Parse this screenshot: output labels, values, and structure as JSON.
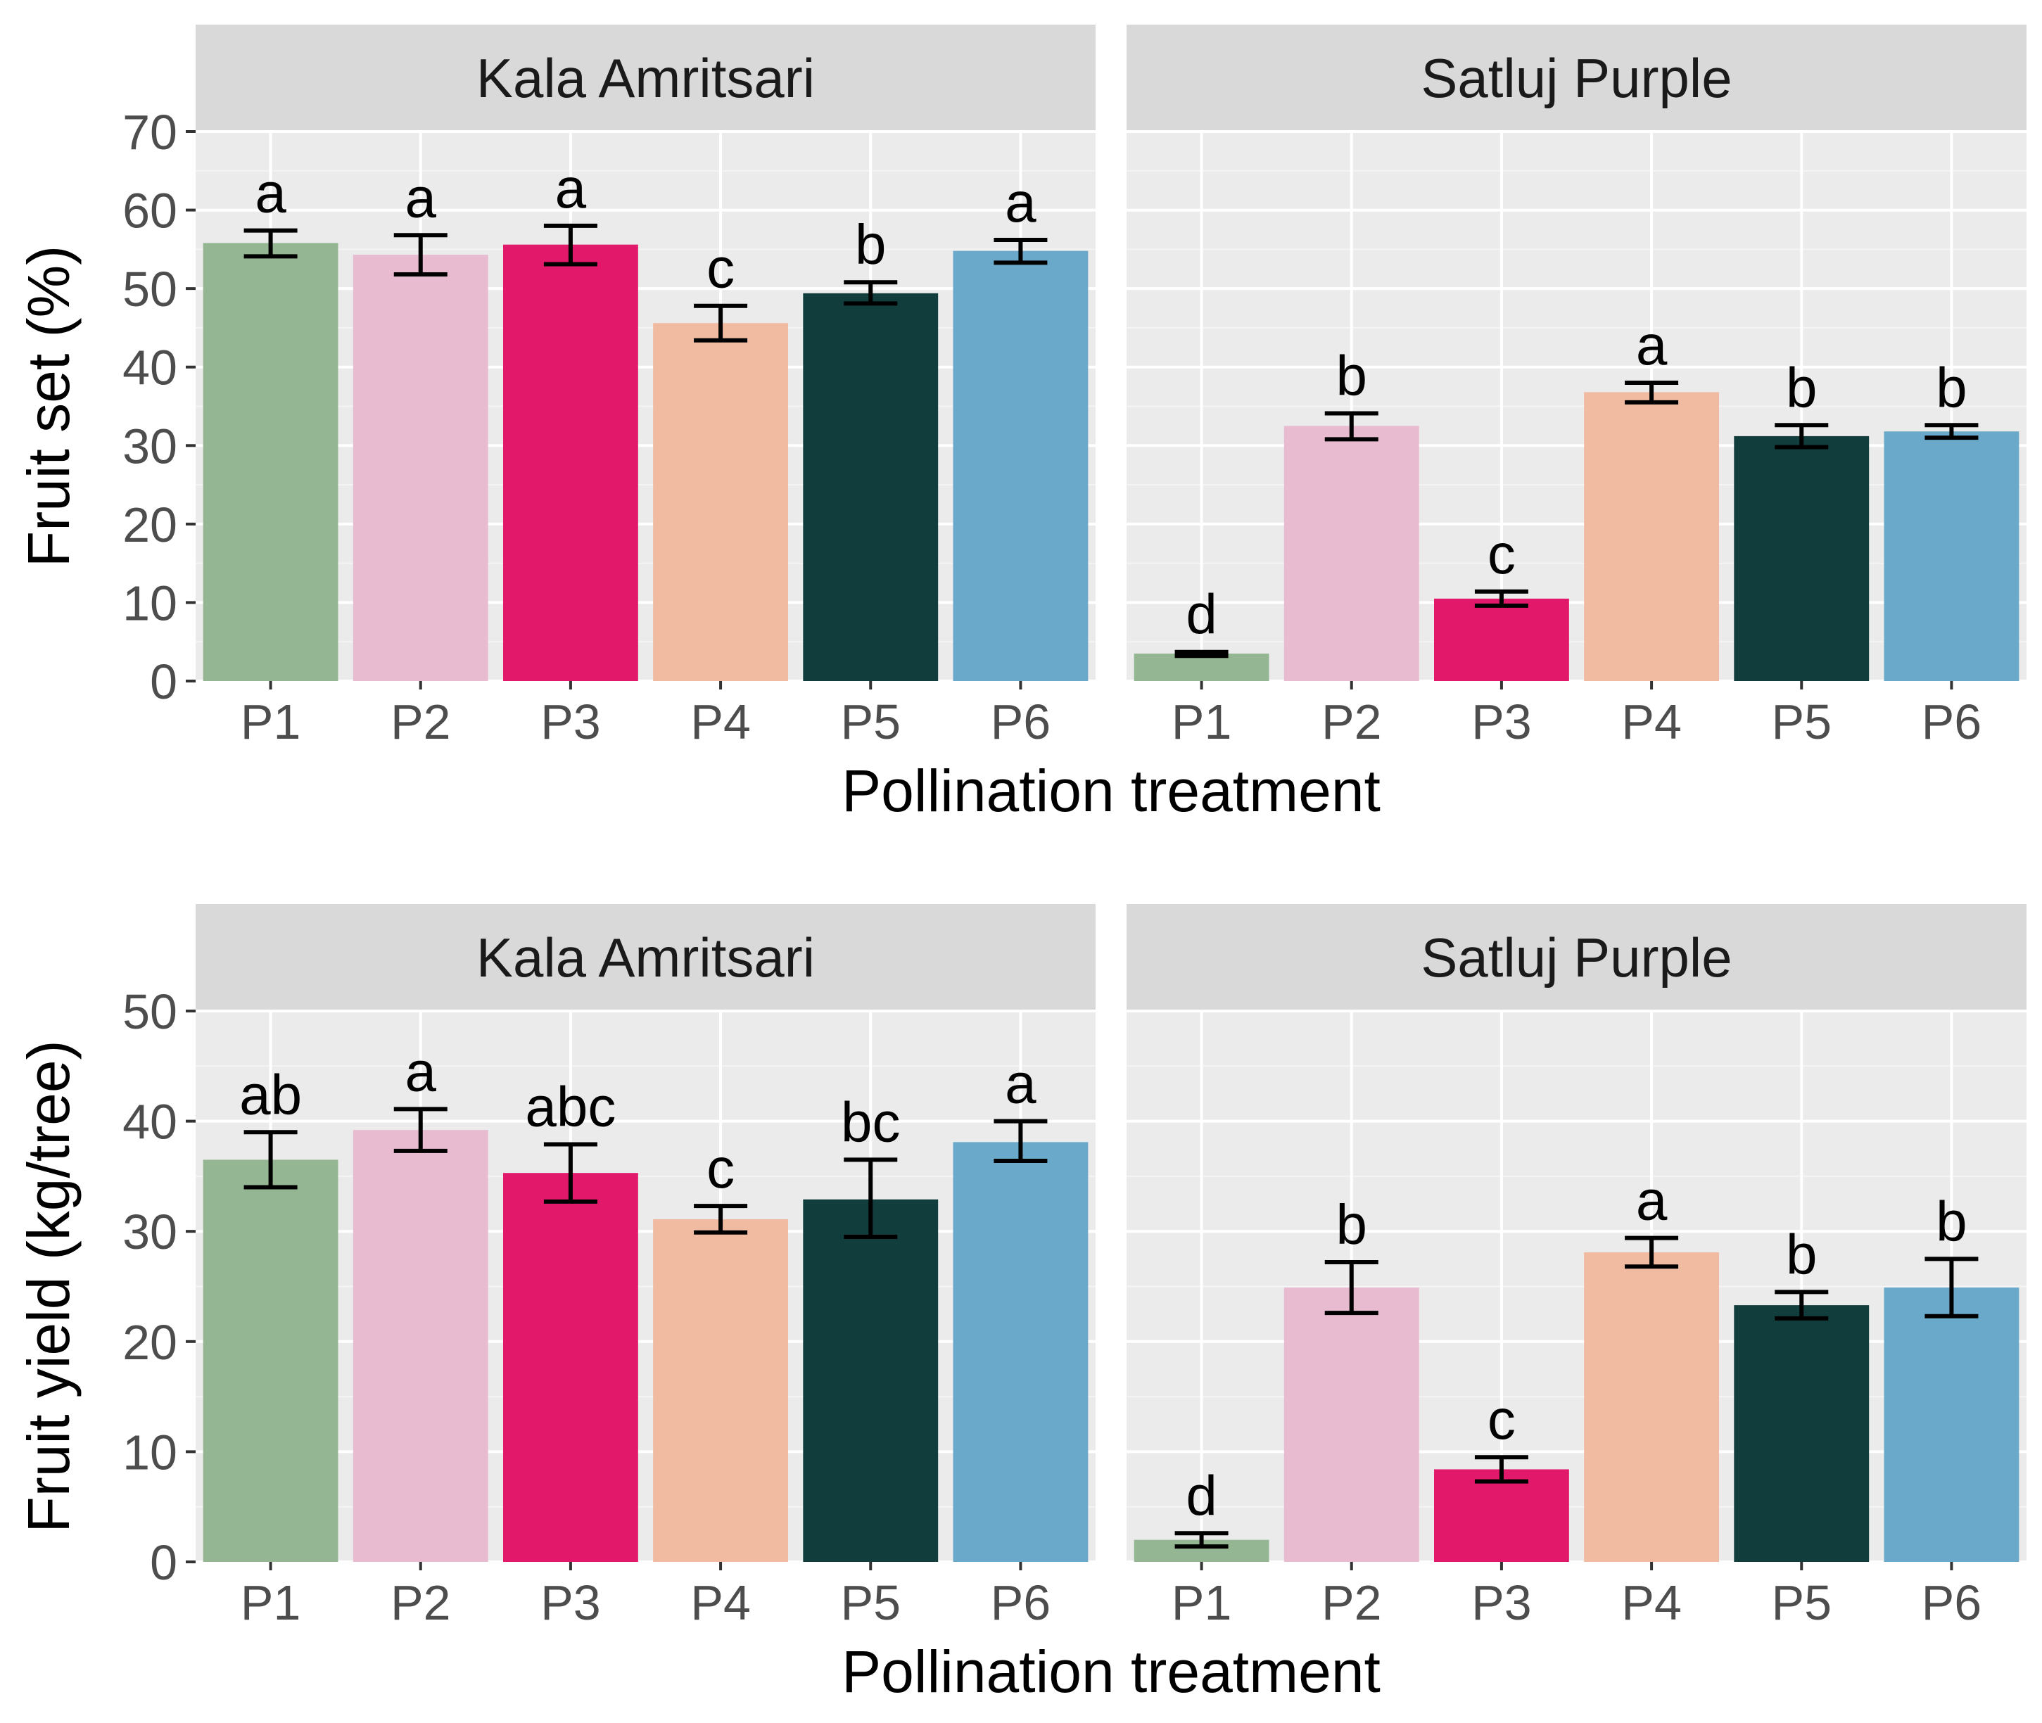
{
  "figure": {
    "x_axis_title": "Pollination treatment",
    "colors": {
      "panel_bg": "#ebebeb",
      "strip_bg": "#d9d9d9",
      "grid_major": "#ffffff",
      "grid_minor": "#f4f4f4",
      "tick_text": "#4d4d4d",
      "errorbar": "#000000",
      "P1": "#94b692",
      "P2": "#e8bbd0",
      "P3": "#e2196a",
      "P4": "#f0bba1",
      "P5": "#113d3d",
      "P6": "#6aa9c9"
    }
  },
  "chart_data": [
    {
      "type": "bar",
      "name": "fruit-set",
      "ylabel": "Fruit set (%)",
      "xlabel": "Pollination treatment",
      "ylim": [
        0,
        70
      ],
      "yticks": [
        0,
        10,
        20,
        30,
        40,
        50,
        60,
        70
      ],
      "categories": [
        "P1",
        "P2",
        "P3",
        "P4",
        "P5",
        "P6"
      ],
      "facets": [
        {
          "title": "Kala Amritsari",
          "values": [
            55.8,
            54.3,
            55.6,
            45.6,
            49.4,
            54.8
          ],
          "err_low": [
            54.1,
            51.8,
            53.1,
            43.4,
            48.1,
            53.3
          ],
          "err_high": [
            57.4,
            56.8,
            58.0,
            47.8,
            50.8,
            56.2
          ],
          "letters": [
            "a",
            "a",
            "a",
            "c",
            "b",
            "a"
          ]
        },
        {
          "title": "Satluj Purple",
          "values": [
            3.5,
            32.5,
            10.5,
            36.8,
            31.2,
            31.8
          ],
          "err_low": [
            3.2,
            30.8,
            9.6,
            35.5,
            29.8,
            31.0
          ],
          "err_high": [
            3.7,
            34.1,
            11.4,
            38.0,
            32.6,
            32.6
          ],
          "letters": [
            "d",
            "b",
            "c",
            "a",
            "b",
            "b"
          ]
        }
      ]
    },
    {
      "type": "bar",
      "name": "fruit-yield",
      "ylabel": "Fruit yield (kg/tree)",
      "xlabel": "Pollination treatment",
      "ylim": [
        0,
        50
      ],
      "yticks": [
        0,
        10,
        20,
        30,
        40,
        50
      ],
      "categories": [
        "P1",
        "P2",
        "P3",
        "P4",
        "P5",
        "P6"
      ],
      "facets": [
        {
          "title": "Kala Amritsari",
          "values": [
            36.5,
            39.2,
            35.3,
            31.1,
            32.9,
            38.1
          ],
          "err_low": [
            34.0,
            37.3,
            32.7,
            29.9,
            29.5,
            36.4
          ],
          "err_high": [
            39.0,
            41.1,
            37.9,
            32.3,
            36.5,
            40.0
          ],
          "letters": [
            "ab",
            "a",
            "abc",
            "c",
            "bc",
            "a"
          ]
        },
        {
          "title": "Satluj Purple",
          "values": [
            2.0,
            24.9,
            8.4,
            28.1,
            23.3,
            24.9
          ],
          "err_low": [
            1.4,
            22.6,
            7.3,
            26.8,
            22.1,
            22.3
          ],
          "err_high": [
            2.6,
            27.2,
            9.5,
            29.4,
            24.5,
            27.5
          ],
          "letters": [
            "d",
            "b",
            "c",
            "a",
            "b",
            "b"
          ]
        }
      ]
    }
  ]
}
